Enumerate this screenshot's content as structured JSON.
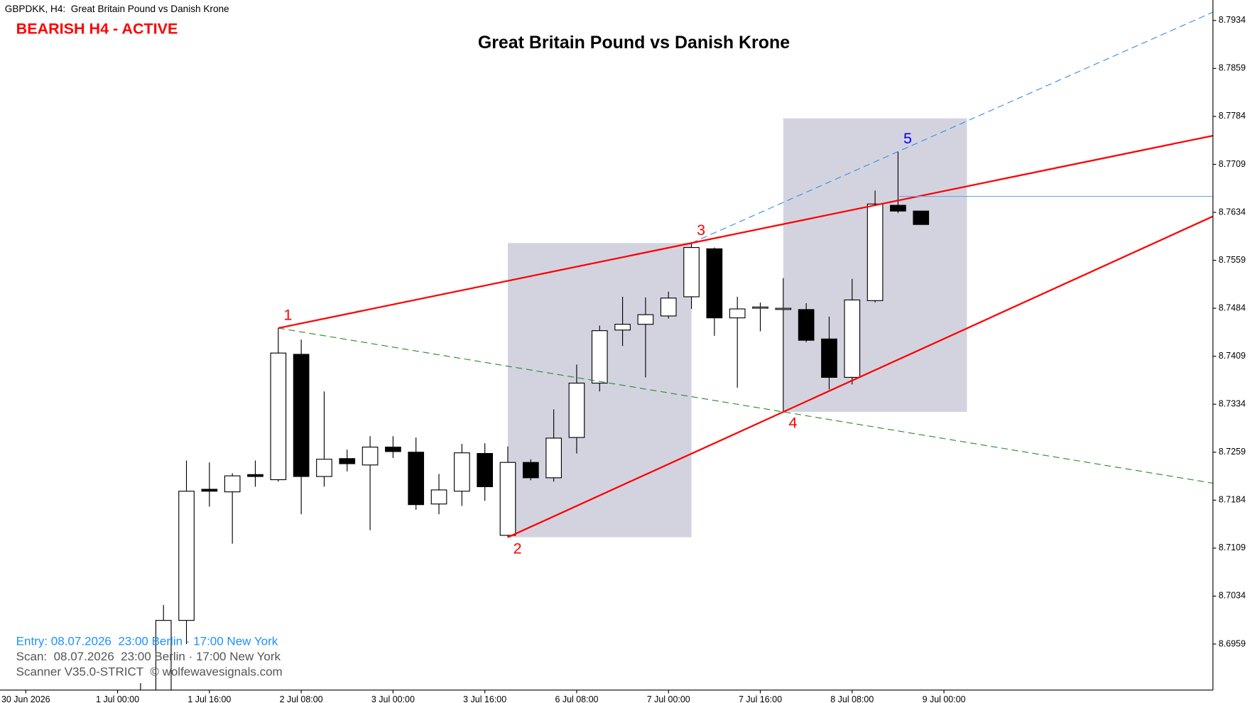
{
  "header": "GBPDKK, H4:  Great Britain Pound vs Danish Krone",
  "status": "BEARISH H4 - ACTIVE",
  "footer": [
    "Entry: 08.07.2026  23:00 Berlin · 17:00 New York",
    "Scan:  08.07.2026  23:00 Berlin · 17:00 New York",
    "Scanner V35.0-STRICT  © wolfewavesignals.com"
  ],
  "chart_data": {
    "type": "candlestick",
    "title": "Great Britain Pound vs Danish Krone",
    "categories": [
      "30 Jun 2026",
      null,
      null,
      null,
      "1 Jul 00:00",
      null,
      null,
      null,
      "1 Jul 16:00",
      null,
      null,
      null,
      "2 Jul 08:00",
      null,
      null,
      null,
      "3 Jul 00:00",
      null,
      null,
      null,
      "3 Jul 16:00",
      null,
      null,
      null,
      "6 Jul 08:00",
      null,
      null,
      null,
      "7 Jul 00:00",
      null,
      null,
      null,
      "7 Jul 16:00",
      null,
      null,
      null,
      "8 Jul 08:00",
      null,
      null,
      null,
      "9 Jul 00:00"
    ],
    "open": [
      null,
      null,
      null,
      null,
      null,
      8.6832,
      8.6864,
      8.6996,
      8.7201,
      8.7197,
      8.7224,
      8.7216,
      8.7412,
      8.7221,
      8.7249,
      8.7239,
      8.7267,
      8.7259,
      8.7178,
      8.7198,
      8.7257,
      8.7129,
      8.7243,
      8.7219,
      8.7282,
      8.7367,
      8.745,
      8.7459,
      8.7472,
      8.7502,
      8.7577,
      8.7469,
      8.7486,
      8.7484,
      8.7482,
      8.7436,
      8.7376,
      8.7496,
      8.7645,
      8.7636,
      null
    ],
    "high": [
      null,
      null,
      null,
      null,
      null,
      8.6898,
      8.702,
      8.7246,
      8.7243,
      8.7226,
      8.7246,
      8.7453,
      8.7435,
      8.7354,
      8.7263,
      8.7284,
      8.7284,
      8.7282,
      8.7225,
      8.7272,
      8.7273,
      8.7268,
      8.7248,
      8.7326,
      8.7396,
      8.7457,
      8.7502,
      8.7501,
      8.751,
      8.7586,
      8.7579,
      8.7502,
      8.7493,
      8.7531,
      8.7492,
      8.7471,
      8.753,
      8.7668,
      8.7729,
      8.7636,
      null
    ],
    "low": [
      null,
      null,
      null,
      null,
      null,
      8.682,
      8.6845,
      8.6959,
      8.7174,
      8.7116,
      8.7205,
      8.7213,
      8.7162,
      8.7205,
      8.7229,
      8.7137,
      8.725,
      8.7169,
      8.7162,
      8.7175,
      8.7183,
      8.7126,
      8.7215,
      8.7213,
      8.7257,
      8.7354,
      8.7425,
      8.7376,
      8.7468,
      8.7483,
      8.7441,
      8.736,
      8.7448,
      8.7322,
      8.7431,
      8.7357,
      8.7365,
      8.7493,
      8.7633,
      8.7615,
      null
    ],
    "close": [
      null,
      null,
      null,
      null,
      null,
      8.6883,
      8.6996,
      8.7198,
      8.7198,
      8.7222,
      8.7221,
      8.7414,
      8.7221,
      8.7248,
      8.7241,
      8.7267,
      8.726,
      8.7177,
      8.72,
      8.7258,
      8.7205,
      8.7243,
      8.7219,
      8.7281,
      8.7367,
      8.7449,
      8.7459,
      8.7474,
      8.75,
      8.7579,
      8.7469,
      8.7483,
      8.7486,
      8.7484,
      8.7434,
      8.7376,
      8.7497,
      8.7647,
      8.7636,
      8.7615,
      null
    ],
    "wave_points": [
      {
        "label": "1",
        "value": 8.7453,
        "color": "#ff0000"
      },
      {
        "label": "2",
        "value": 8.7126,
        "color": "#ff0000"
      },
      {
        "label": "3",
        "value": 8.7586,
        "color": "#ff0000"
      },
      {
        "label": "4",
        "value": 8.7322,
        "color": "#ff0000"
      },
      {
        "label": "5",
        "value": 8.7729,
        "color": "#0000ff"
      }
    ],
    "level": 8.7659,
    "zone_top": 8.7781,
    "ylim": [
      8.6887,
      8.7966
    ],
    "yticks": [
      8.7934,
      8.7859,
      8.7784,
      8.7709,
      8.7634,
      8.7559,
      8.7484,
      8.7409,
      8.7334,
      8.7259,
      8.7184,
      8.7109,
      8.7034,
      8.6959
    ],
    "grid": false
  }
}
